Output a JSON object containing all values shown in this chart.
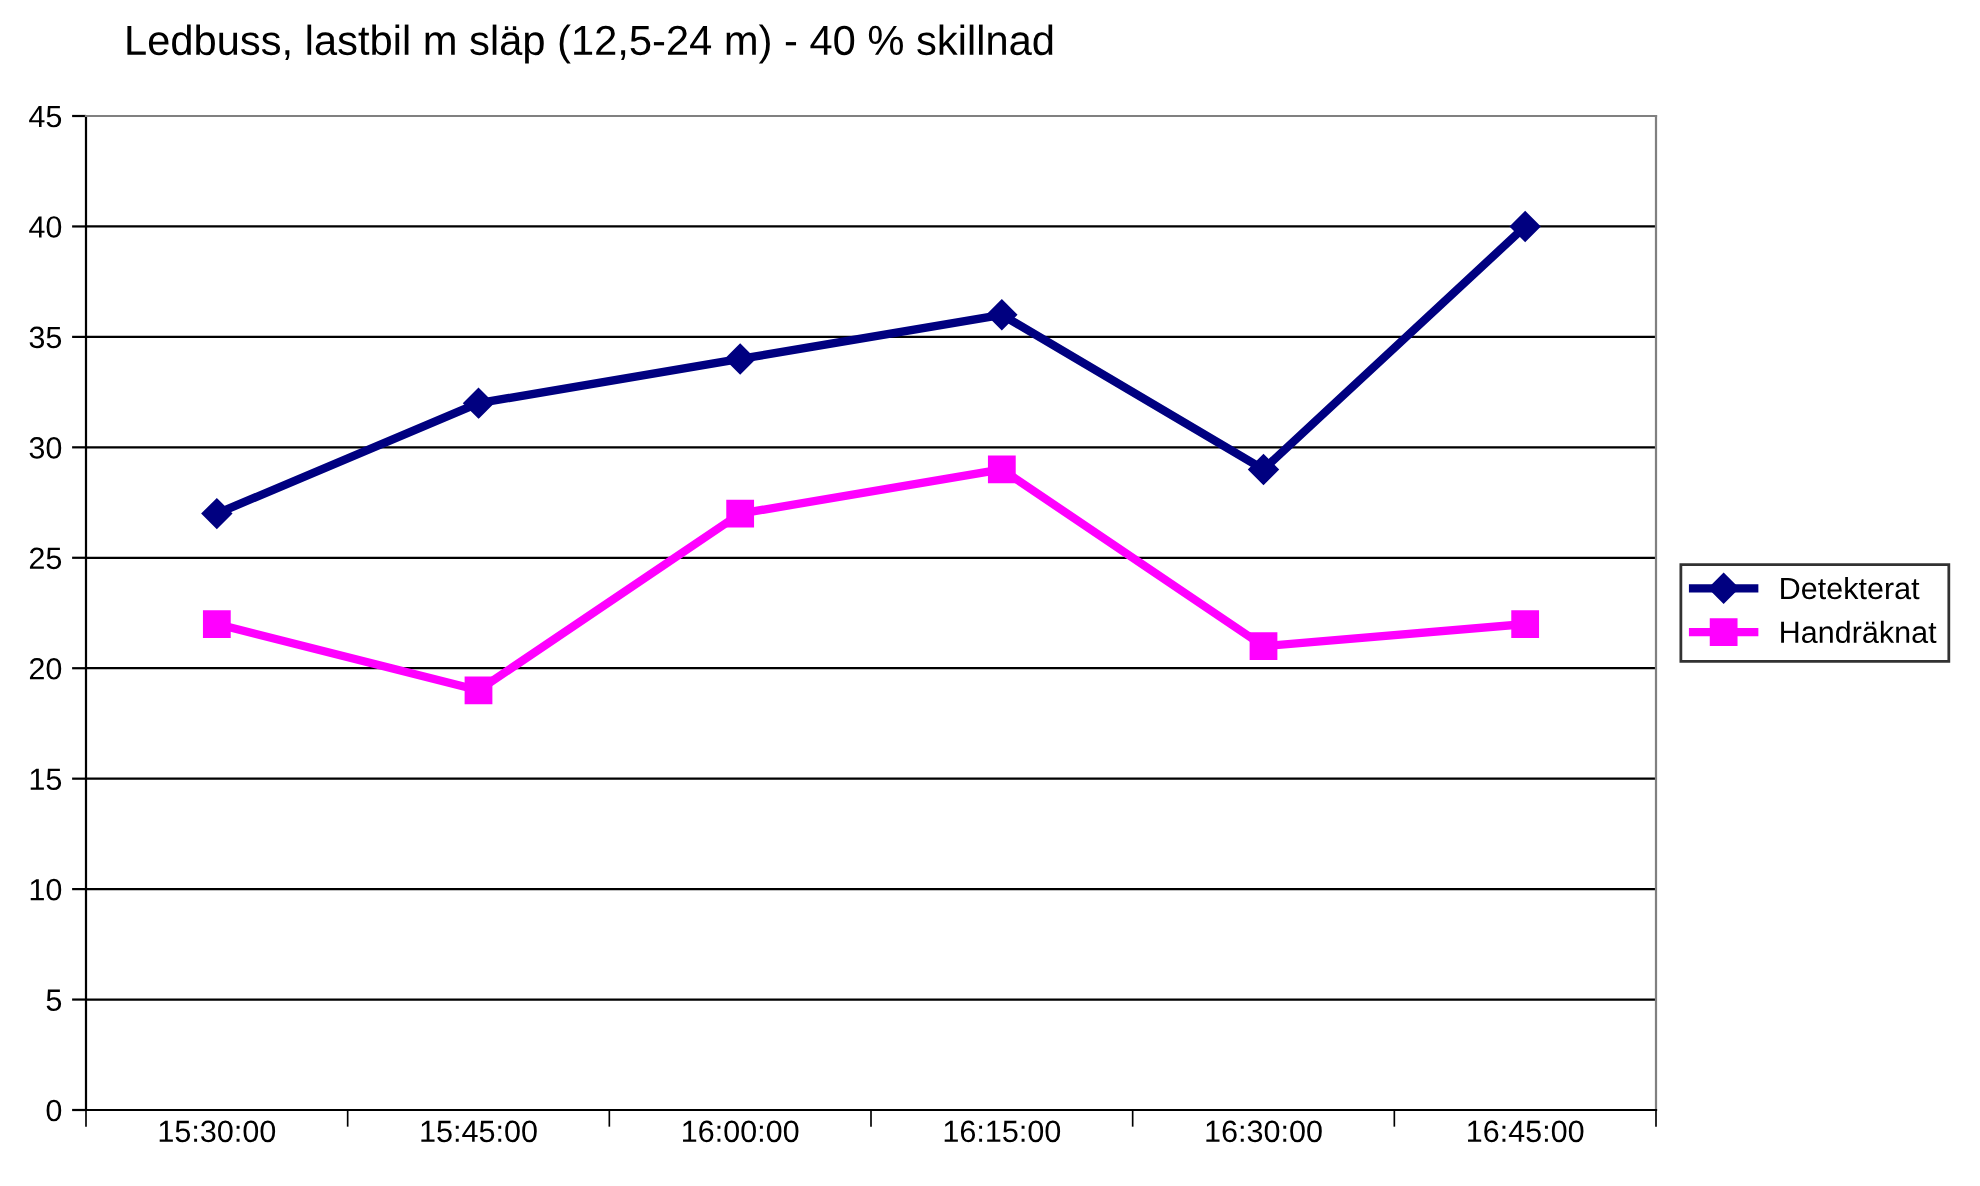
{
  "chart_data": {
    "type": "line",
    "title": "Ledbuss, lastbil m släp (12,5-24 m) - 40 % skillnad",
    "categories": [
      "15:30:00",
      "15:45:00",
      "16:00:00",
      "16:15:00",
      "16:30:00",
      "16:45:00"
    ],
    "series": [
      {
        "name": "Detekterat",
        "color": "#000080",
        "marker": "diamond",
        "values": [
          27,
          32,
          34,
          36,
          29,
          40
        ]
      },
      {
        "name": "Handräknat",
        "color": "#ff00ff",
        "marker": "square",
        "values": [
          22,
          19,
          27,
          29,
          21,
          22
        ]
      }
    ],
    "ylim": [
      0,
      45
    ],
    "yticks": [
      0,
      5,
      10,
      15,
      20,
      25,
      30,
      35,
      40,
      45
    ],
    "grid": "y",
    "legend": "right",
    "line_style": "solid"
  }
}
